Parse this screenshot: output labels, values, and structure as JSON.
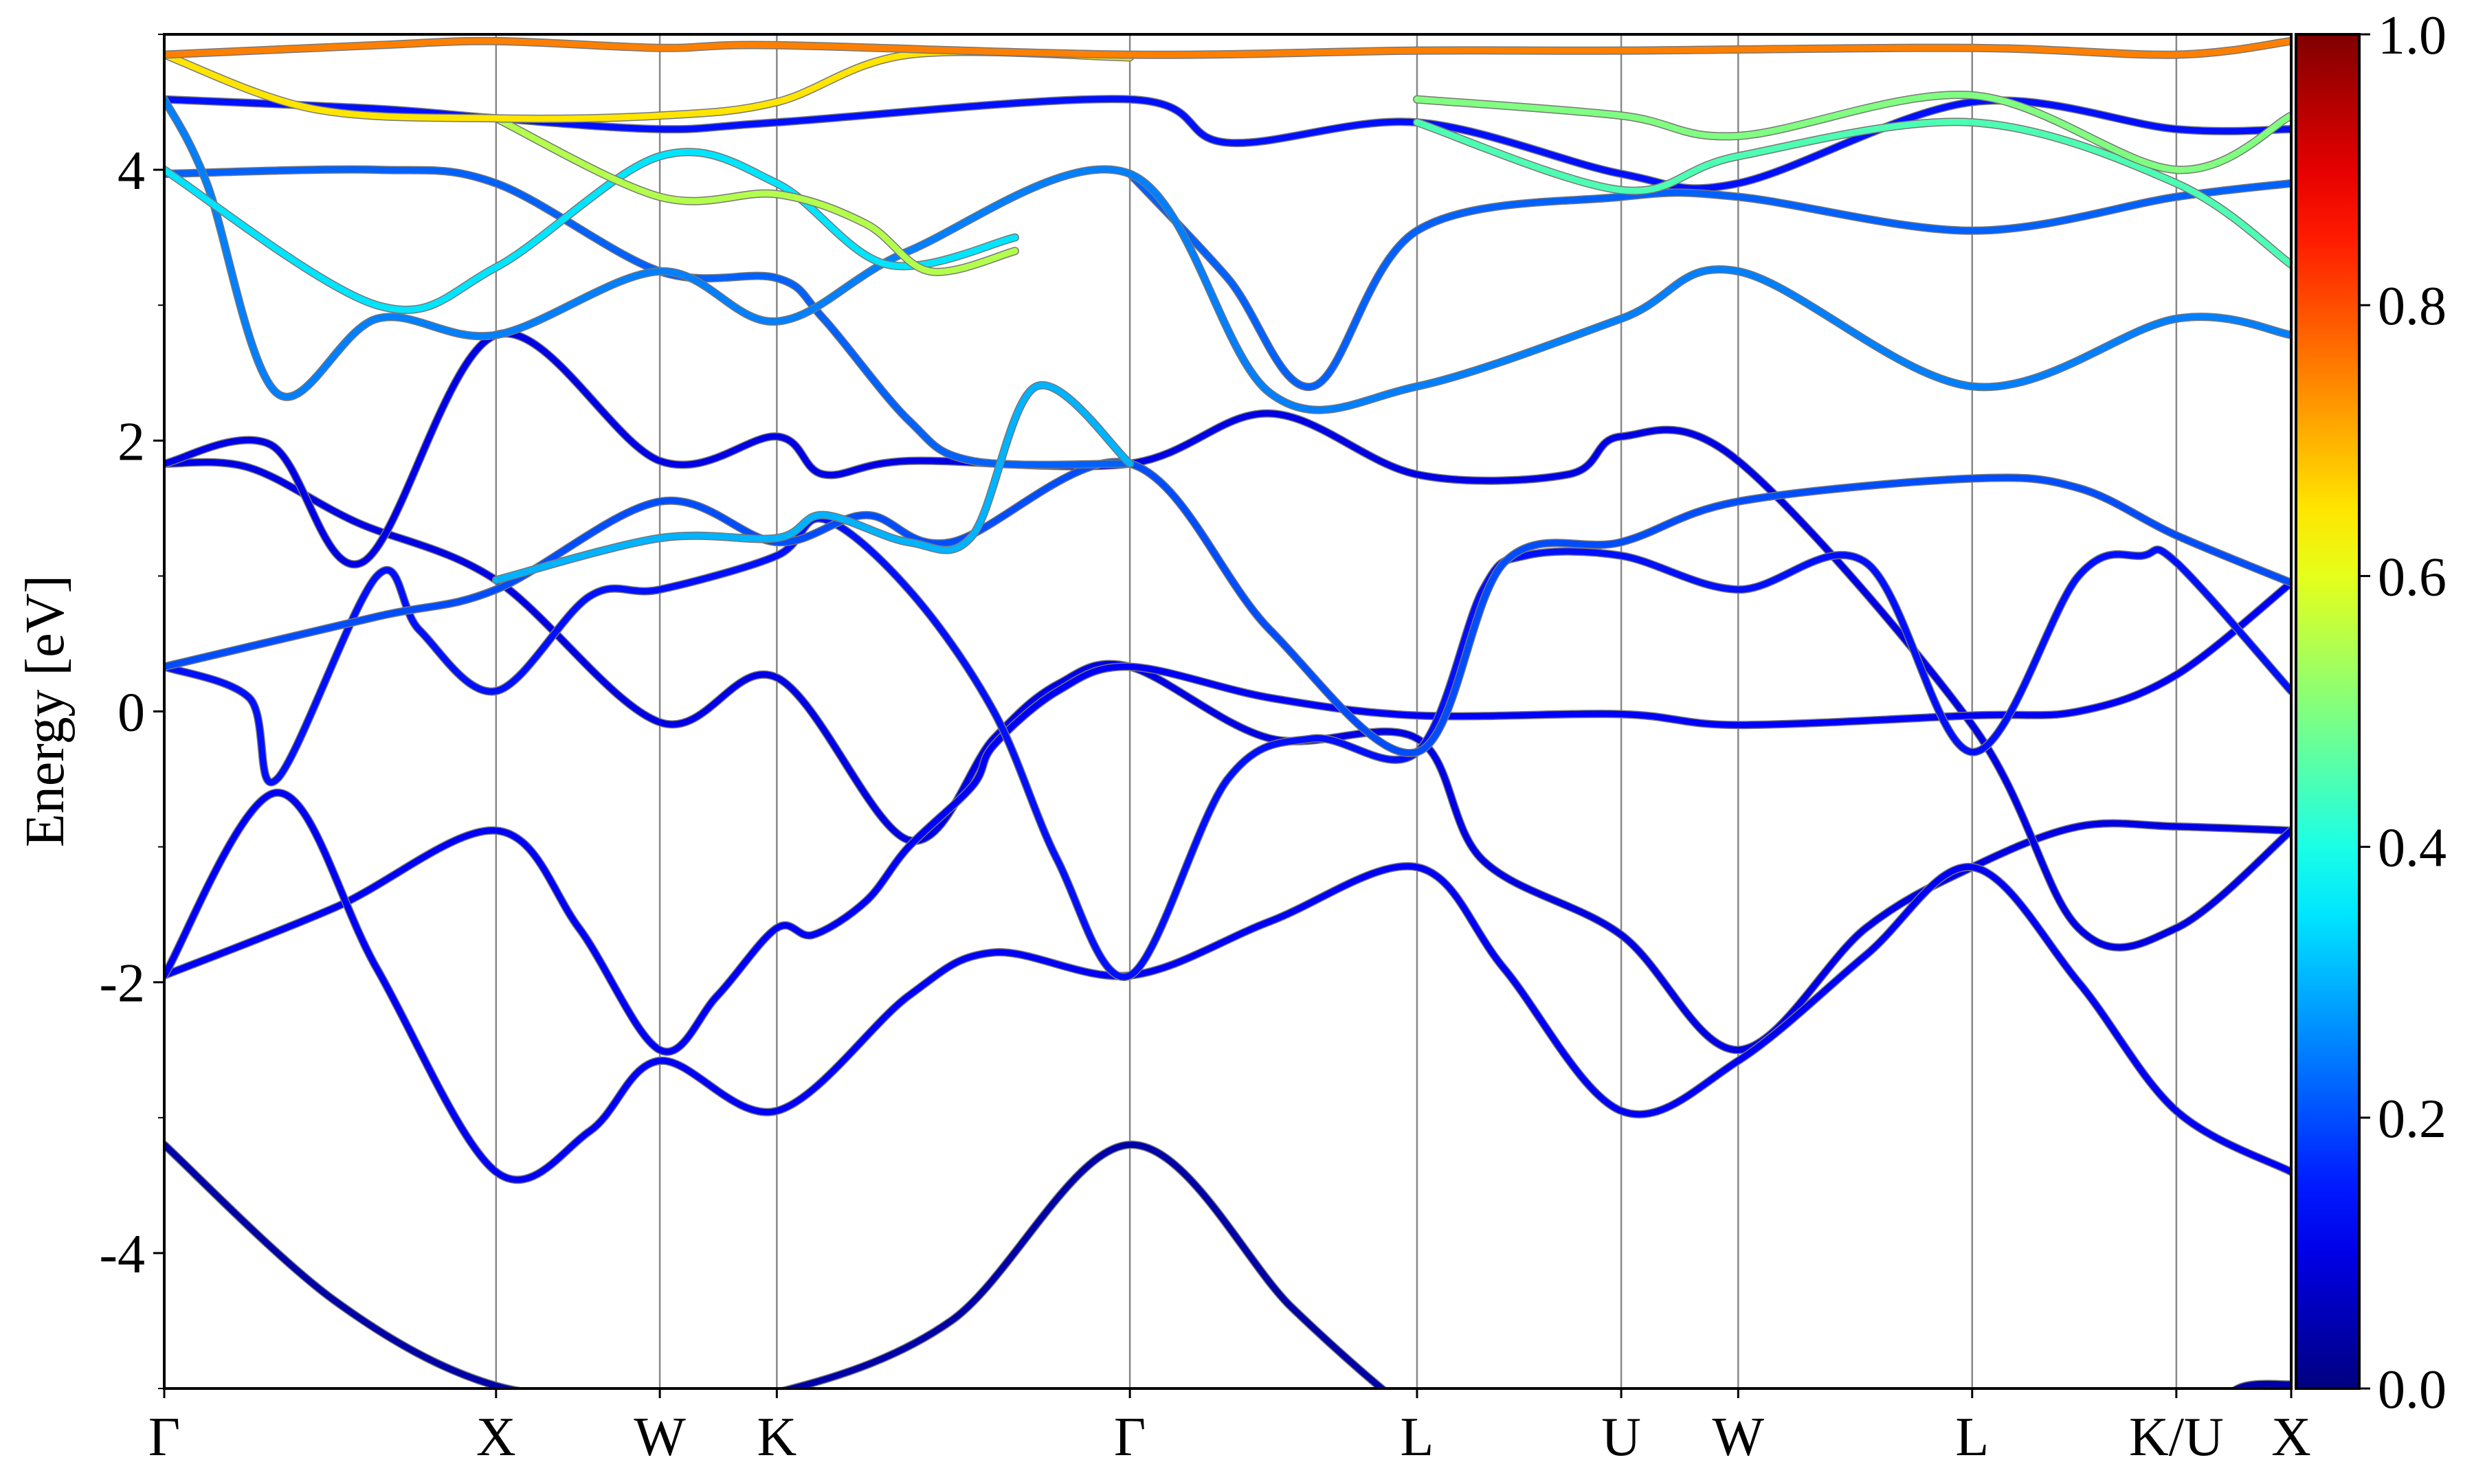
{
  "chart_data": {
    "type": "line",
    "title": "",
    "xlabel": "",
    "ylabel": "Energy [eV]",
    "ylim": [
      -5,
      5
    ],
    "xlim": [
      0,
      1
    ],
    "grid": "vertical lines at high-symmetry points",
    "yticks": [
      -4,
      -2,
      0,
      2,
      4
    ],
    "ytick_labels": [
      "-4",
      "-2",
      "0",
      "2",
      "4"
    ],
    "yminor_ticks": [
      -5,
      -3,
      -1,
      1,
      3,
      5
    ],
    "kpoints": [
      {
        "label": "Γ",
        "k": 0
      },
      {
        "label": "X",
        "k": 0.156
      },
      {
        "label": "W",
        "k": 0.233
      },
      {
        "label": "K",
        "k": 0.288
      },
      {
        "label": "Γ",
        "k": 0.454
      },
      {
        "label": "L",
        "k": 0.589
      },
      {
        "label": "U",
        "k": 0.685
      },
      {
        "label": "W",
        "k": 0.74
      },
      {
        "label": "L",
        "k": 0.85
      },
      {
        "label": "K/U",
        "k": 0.946
      },
      {
        "label": "X",
        "k": 1
      }
    ],
    "colorbar": {
      "colormap": "jet",
      "range": [
        0,
        1
      ],
      "ticks": [
        "0.0",
        "0.2",
        "0.4",
        "0.6",
        "0.8",
        "1.0"
      ]
    },
    "bands": [
      {
        "weight": 0.04,
        "points": [
          [
            0,
            -3.2
          ],
          [
            0.08,
            -4.35
          ],
          [
            0.156,
            -4.98
          ],
          [
            0.233,
            -5.05
          ],
          [
            0.288,
            -5.03
          ],
          [
            0.37,
            -4.5
          ],
          [
            0.454,
            -3.2
          ],
          [
            0.53,
            -4.4
          ],
          [
            0.58,
            -5.1
          ],
          [
            0.6,
            -5.3
          ]
        ]
      },
      {
        "weight": 0.04,
        "points": [
          [
            0.955,
            -5.3
          ],
          [
            0.975,
            -5.0
          ],
          [
            1,
            -4.97
          ]
        ]
      },
      {
        "weight": 0.12,
        "points": [
          [
            0,
            -1.95
          ],
          [
            0.08,
            -1.45
          ],
          [
            0.156,
            -0.88
          ],
          [
            0.195,
            -1.6
          ],
          [
            0.233,
            -2.5
          ],
          [
            0.26,
            -2.1
          ],
          [
            0.288,
            -1.6
          ],
          [
            0.305,
            -1.65
          ],
          [
            0.33,
            -1.4
          ],
          [
            0.35,
            -1.0
          ],
          [
            0.38,
            -0.55
          ],
          [
            0.39,
            -0.25
          ],
          [
            0.42,
            0.15
          ],
          [
            0.454,
            0.33
          ],
          [
            0.52,
            0.1
          ],
          [
            0.589,
            -0.03
          ],
          [
            0.685,
            -0.02
          ],
          [
            0.74,
            -0.1
          ],
          [
            0.85,
            -0.03
          ],
          [
            0.9,
            0
          ],
          [
            0.946,
            0.27
          ],
          [
            1,
            0.95
          ]
        ]
      },
      {
        "weight": 0.12,
        "points": [
          [
            0,
            -1.95
          ],
          [
            0.053,
            -0.6
          ],
          [
            0.1,
            -1.9
          ],
          [
            0.156,
            -3.4
          ],
          [
            0.2,
            -3.1
          ],
          [
            0.233,
            -2.58
          ],
          [
            0.288,
            -2.95
          ],
          [
            0.35,
            -2.1
          ],
          [
            0.39,
            -1.78
          ],
          [
            0.454,
            -1.95
          ],
          [
            0.52,
            -1.55
          ],
          [
            0.589,
            -1.15
          ],
          [
            0.63,
            -1.9
          ],
          [
            0.685,
            -2.95
          ],
          [
            0.74,
            -2.58
          ],
          [
            0.8,
            -1.8
          ],
          [
            0.85,
            -1.15
          ],
          [
            0.9,
            -2.0
          ],
          [
            0.946,
            -2.95
          ],
          [
            1,
            -3.4
          ]
        ]
      },
      {
        "weight": 0.14,
        "points": [
          [
            0,
            0.33
          ],
          [
            0.04,
            0.1
          ],
          [
            0.053,
            -0.5
          ],
          [
            0.1,
            1.0
          ],
          [
            0.12,
            0.6
          ],
          [
            0.156,
            0.15
          ],
          [
            0.2,
            0.85
          ],
          [
            0.233,
            0.9
          ],
          [
            0.288,
            1.15
          ],
          [
            0.31,
            1.42
          ],
          [
            0.35,
            0.9
          ],
          [
            0.39,
            0
          ],
          [
            0.42,
            -1.1
          ],
          [
            0.454,
            -1.95
          ],
          [
            0.5,
            -0.5
          ],
          [
            0.54,
            -0.2
          ],
          [
            0.589,
            -0.3
          ],
          [
            0.62,
            0.9
          ],
          [
            0.64,
            1.15
          ],
          [
            0.685,
            1.15
          ],
          [
            0.74,
            0.9
          ],
          [
            0.8,
            1.1
          ],
          [
            0.85,
            -0.3
          ],
          [
            0.9,
            1.0
          ],
          [
            0.93,
            1.15
          ],
          [
            0.946,
            1.1
          ],
          [
            1,
            0.15
          ]
        ]
      },
      {
        "weight": 0.1,
        "points": [
          [
            0,
            1.83
          ],
          [
            0.04,
            1.8
          ],
          [
            0.09,
            1.4
          ],
          [
            0.156,
            0.97
          ],
          [
            0.233,
            -0.08
          ],
          [
            0.288,
            0.25
          ],
          [
            0.35,
            -0.95
          ],
          [
            0.39,
            -0.2
          ],
          [
            0.42,
            0.2
          ],
          [
            0.454,
            0.33
          ],
          [
            0.52,
            -0.2
          ],
          [
            0.589,
            -0.2
          ],
          [
            0.62,
            -1.1
          ],
          [
            0.685,
            -1.65
          ],
          [
            0.74,
            -2.5
          ],
          [
            0.8,
            -1.6
          ],
          [
            0.85,
            -1.15
          ],
          [
            0.9,
            -0.85
          ],
          [
            0.946,
            -0.85
          ],
          [
            1,
            -0.88
          ]
        ]
      },
      {
        "weight": 0.1,
        "points": [
          [
            0,
            1.83
          ],
          [
            0.05,
            1.97
          ],
          [
            0.093,
            1.1
          ],
          [
            0.156,
            2.78
          ],
          [
            0.233,
            1.85
          ],
          [
            0.288,
            2.03
          ],
          [
            0.31,
            1.75
          ],
          [
            0.35,
            1.85
          ],
          [
            0.454,
            1.83
          ],
          [
            0.52,
            2.2
          ],
          [
            0.589,
            1.75
          ],
          [
            0.66,
            1.75
          ],
          [
            0.685,
            2.03
          ],
          [
            0.74,
            1.85
          ],
          [
            0.85,
            -0.1
          ],
          [
            0.9,
            -1.6
          ],
          [
            0.946,
            -1.6
          ],
          [
            1,
            -0.88
          ]
        ]
      },
      {
        "weight": 0.2,
        "points": [
          [
            0,
            0.33
          ],
          [
            0.1,
            0.7
          ],
          [
            0.156,
            0.9
          ],
          [
            0.233,
            1.55
          ],
          [
            0.288,
            1.25
          ],
          [
            0.33,
            1.45
          ],
          [
            0.37,
            1.25
          ],
          [
            0.454,
            1.83
          ],
          [
            0.52,
            0.6
          ],
          [
            0.589,
            -0.3
          ],
          [
            0.63,
            1.1
          ],
          [
            0.685,
            1.25
          ],
          [
            0.74,
            1.55
          ],
          [
            0.85,
            1.72
          ],
          [
            0.9,
            1.65
          ],
          [
            0.946,
            1.3
          ],
          [
            1,
            0.95
          ]
        ]
      },
      {
        "weight": 0.3,
        "points": [
          [
            0.156,
            0.97
          ],
          [
            0.233,
            1.28
          ],
          [
            0.288,
            1.28
          ],
          [
            0.31,
            1.45
          ],
          [
            0.35,
            1.25
          ],
          [
            0.38,
            1.3
          ],
          [
            0.41,
            2.4
          ],
          [
            0.454,
            1.83
          ]
        ]
      },
      {
        "weight": 0.25,
        "points": [
          [
            0,
            4.52
          ],
          [
            0.02,
            3.9
          ],
          [
            0.053,
            2.35
          ],
          [
            0.1,
            2.9
          ],
          [
            0.156,
            2.78
          ],
          [
            0.233,
            3.25
          ],
          [
            0.288,
            2.88
          ],
          [
            0.35,
            3.4
          ],
          [
            0.454,
            3.97
          ],
          [
            0.52,
            2.35
          ],
          [
            0.589,
            2.4
          ],
          [
            0.685,
            2.9
          ],
          [
            0.74,
            3.25
          ],
          [
            0.85,
            2.4
          ],
          [
            0.946,
            2.9
          ],
          [
            1,
            2.78
          ]
        ]
      },
      {
        "weight": 0.22,
        "points": [
          [
            0,
            3.97
          ],
          [
            0.1,
            4.0
          ],
          [
            0.156,
            3.9
          ],
          [
            0.233,
            3.25
          ],
          [
            0.288,
            3.2
          ],
          [
            0.31,
            2.9
          ],
          [
            0.35,
            2.15
          ],
          [
            0.38,
            1.85
          ],
          [
            0.454,
            1.83
          ]
        ]
      },
      {
        "weight": 0.22,
        "points": [
          [
            0.454,
            3.97
          ],
          [
            0.5,
            3.2
          ],
          [
            0.54,
            2.4
          ],
          [
            0.589,
            3.55
          ],
          [
            0.685,
            3.8
          ],
          [
            0.74,
            3.8
          ],
          [
            0.85,
            3.55
          ],
          [
            0.946,
            3.8
          ],
          [
            1,
            3.9
          ]
        ]
      },
      {
        "weight": 0.35,
        "points": [
          [
            0,
            4.0
          ],
          [
            0.1,
            3.0
          ],
          [
            0.156,
            3.28
          ],
          [
            0.233,
            4.1
          ],
          [
            0.288,
            3.9
          ],
          [
            0.34,
            3.3
          ],
          [
            0.4,
            3.5
          ]
        ]
      },
      {
        "weight": 0.14,
        "points": [
          [
            0,
            4.52
          ],
          [
            0.1,
            4.45
          ],
          [
            0.156,
            4.38
          ],
          [
            0.233,
            4.3
          ],
          [
            0.288,
            4.35
          ],
          [
            0.454,
            4.52
          ],
          [
            0.5,
            4.2
          ],
          [
            0.589,
            4.35
          ],
          [
            0.685,
            3.97
          ],
          [
            0.74,
            3.9
          ],
          [
            0.85,
            4.5
          ],
          [
            0.946,
            4.3
          ],
          [
            1,
            4.3
          ]
        ]
      },
      {
        "weight": 0.75,
        "points": [
          [
            0,
            4.85
          ],
          [
            0.1,
            4.92
          ],
          [
            0.156,
            4.95
          ],
          [
            0.233,
            4.9
          ],
          [
            0.288,
            4.92
          ],
          [
            0.454,
            4.85
          ],
          [
            0.589,
            4.88
          ],
          [
            0.685,
            4.88
          ],
          [
            0.85,
            4.9
          ],
          [
            0.946,
            4.85
          ],
          [
            1,
            4.95
          ]
        ]
      },
      {
        "weight": 0.65,
        "points": [
          [
            0,
            4.85
          ],
          [
            0.07,
            4.45
          ],
          [
            0.156,
            4.38
          ],
          [
            0.233,
            4.4
          ],
          [
            0.288,
            4.5
          ],
          [
            0.35,
            4.85
          ],
          [
            0.454,
            4.83
          ]
        ]
      },
      {
        "weight": 0.5,
        "points": [
          [
            0.589,
            4.52
          ],
          [
            0.685,
            4.4
          ],
          [
            0.74,
            4.25
          ],
          [
            0.85,
            4.55
          ],
          [
            0.946,
            4.0
          ],
          [
            1,
            4.4
          ]
        ]
      },
      {
        "weight": 0.45,
        "points": [
          [
            0.589,
            4.35
          ],
          [
            0.685,
            3.85
          ],
          [
            0.74,
            4.1
          ],
          [
            0.85,
            4.35
          ],
          [
            0.946,
            3.9
          ],
          [
            1,
            3.3
          ]
        ]
      },
      {
        "weight": 0.55,
        "points": [
          [
            0.156,
            4.38
          ],
          [
            0.233,
            3.8
          ],
          [
            0.288,
            3.82
          ],
          [
            0.33,
            3.6
          ],
          [
            0.36,
            3.25
          ],
          [
            0.4,
            3.4
          ]
        ]
      }
    ]
  }
}
